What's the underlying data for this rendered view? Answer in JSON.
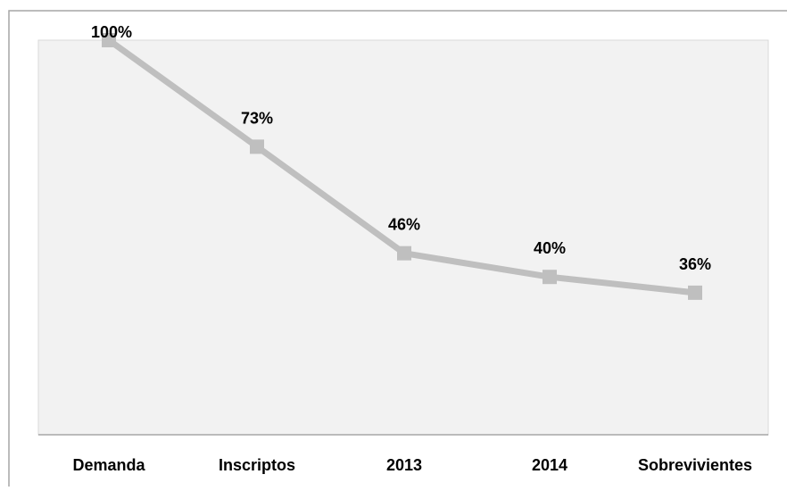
{
  "chart_data": {
    "type": "line",
    "categories": [
      "Demanda",
      "Inscriptos",
      "2013",
      "2014",
      "Sobrevivientes"
    ],
    "values": [
      100,
      73,
      46,
      40,
      36
    ],
    "data_labels": [
      "100%",
      "73%",
      "46%",
      "40%",
      "36%"
    ],
    "title": "",
    "xlabel": "",
    "ylabel": "",
    "ylim": [
      0,
      100
    ],
    "grid": false,
    "legend": "none",
    "colors": {
      "line": "#BFBFBF",
      "marker": "#BFBFBF",
      "plot_bg": "#F2F2F2",
      "frame": "#A6A6A6",
      "axis": "#7F7F7F"
    }
  }
}
